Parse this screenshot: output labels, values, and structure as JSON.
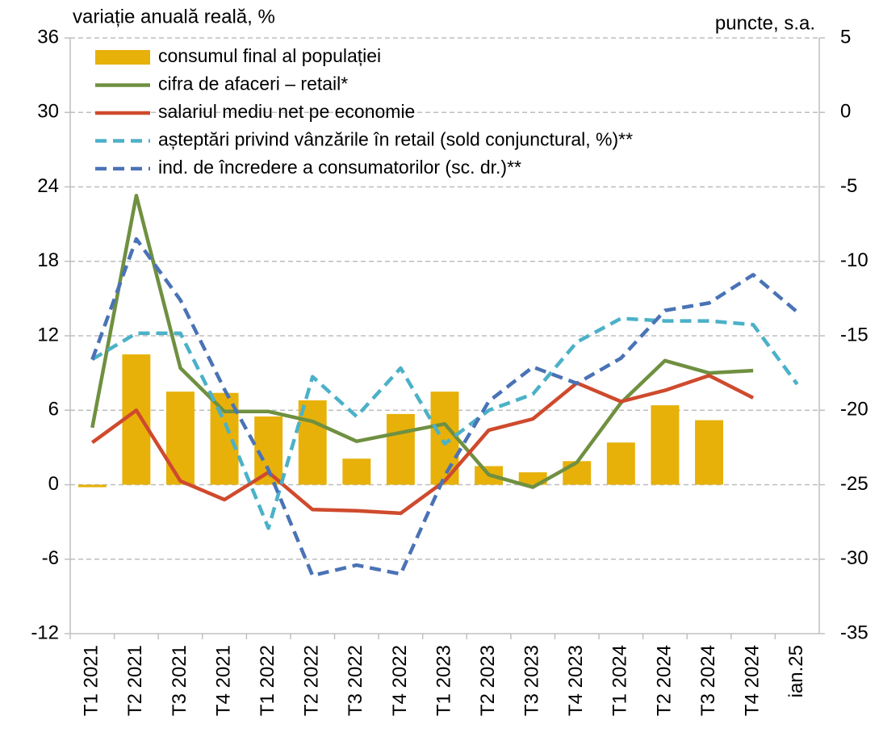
{
  "chart_data": {
    "type": "combo",
    "y_label": "variație anuală reală, %",
    "y2_label": "puncte, s.a.",
    "categories": [
      "T1 2021",
      "T2 2021",
      "T3 2021",
      "T4 2021",
      "T1 2022",
      "T2 2022",
      "T3 2022",
      "T4 2022",
      "T1 2023",
      "T2 2023",
      "T3 2023",
      "T4 2023",
      "T1 2024",
      "T2 2024",
      "T3 2024",
      "T4 2024",
      "ian.25"
    ],
    "ylim": [
      -12,
      36
    ],
    "yticks": [
      -12,
      -6,
      0,
      6,
      12,
      18,
      24,
      30,
      36
    ],
    "y2lim": [
      -35,
      5
    ],
    "y2ticks": [
      -35,
      -30,
      -25,
      -20,
      -15,
      -10,
      -5,
      0,
      5
    ],
    "grid": true,
    "series": [
      {
        "name": "consumul final al populației",
        "type": "bar",
        "color": "#e7b10a",
        "values": [
          -0.2,
          10.5,
          7.5,
          7.4,
          5.5,
          6.8,
          2.1,
          5.7,
          7.5,
          1.5,
          1.0,
          1.9,
          3.4,
          6.4,
          5.2,
          null,
          null
        ]
      },
      {
        "name": "cifra de afaceri – retail*",
        "type": "line",
        "color": "#6f9040",
        "values": [
          4.6,
          23.3,
          9.4,
          5.9,
          5.9,
          5.1,
          3.5,
          4.2,
          4.9,
          0.8,
          -0.2,
          1.8,
          6.6,
          10.0,
          9.0,
          9.2,
          null
        ]
      },
      {
        "name": "salariul mediu net pe economie",
        "type": "line",
        "color": "#cf4a2d",
        "values": [
          3.4,
          6.0,
          0.3,
          -1.2,
          1.0,
          -2.0,
          -2.1,
          -2.3,
          0.3,
          4.4,
          5.3,
          8.2,
          6.7,
          7.6,
          8.8,
          7.0,
          null
        ]
      },
      {
        "name": "așteptări privind vânzările în retail (sold conjunctural, %)**",
        "type": "line",
        "dashed": true,
        "color": "#4bb1c8",
        "values": [
          10.1,
          12.2,
          12.2,
          5.1,
          -3.5,
          8.7,
          5.5,
          9.4,
          3.3,
          6.0,
          7.3,
          11.5,
          13.4,
          13.2,
          13.2,
          12.9,
          8.1
        ]
      },
      {
        "name": "ind. de încredere a consumatorilor (sc. dr.)**",
        "type": "line",
        "dashed": true,
        "axis": "y2",
        "color": "#4a73b6",
        "values": [
          -16.6,
          -8.5,
          -12.6,
          -18.6,
          -24.0,
          -31.1,
          -30.4,
          -31.0,
          -24.4,
          -19.4,
          -17.1,
          -18.2,
          -16.5,
          -13.3,
          -12.8,
          -10.9,
          -13.4
        ]
      }
    ]
  }
}
